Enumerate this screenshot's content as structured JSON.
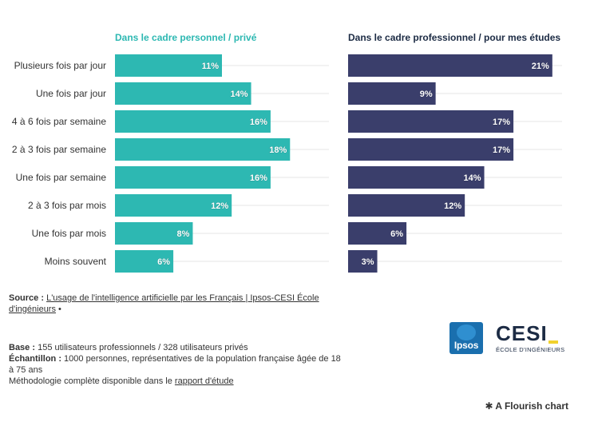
{
  "chart_data": [
    {
      "type": "bar",
      "orientation": "horizontal",
      "title": "Dans le cadre personnel / privé",
      "color": "#2db8b2",
      "categories": [
        "Plusieurs fois par jour",
        "Une fois par jour",
        "4 à 6 fois par semaine",
        "2 à 3 fois par semaine",
        "Une fois par semaine",
        "2 à 3 fois par mois",
        "Une fois par mois",
        "Moins souvent"
      ],
      "values": [
        11,
        14,
        16,
        18,
        16,
        12,
        8,
        6
      ],
      "labels": [
        "11%",
        "14%",
        "16%",
        "18%",
        "16%",
        "12%",
        "8%",
        "6%"
      ],
      "xlim": [
        0,
        22
      ]
    },
    {
      "type": "bar",
      "orientation": "horizontal",
      "title": "Dans le cadre professionnel / pour mes études",
      "color": "#3a3e6b",
      "categories": [
        "Plusieurs fois par jour",
        "Une fois par jour",
        "4 à 6 fois par semaine",
        "2 à 3 fois par semaine",
        "Une fois par semaine",
        "2 à 3 fois par mois",
        "Une fois par mois",
        "Moins souvent"
      ],
      "values": [
        21,
        9,
        17,
        17,
        14,
        12,
        6,
        3
      ],
      "labels": [
        "21%",
        "9%",
        "17%",
        "17%",
        "14%",
        "12%",
        "6%",
        "3%"
      ],
      "xlim": [
        0,
        22
      ]
    }
  ],
  "footer": {
    "source_label": "Source :",
    "source_link": "L'usage de l'intelligence artificielle par les Français | Ipsos-CESI École d'ingénieurs",
    "source_suffix": " •",
    "base_label": "Base :",
    "base_text": " 155 utilisateurs professionnels / 328 utilisateurs privés",
    "sample_label": "Échantillon :",
    "sample_text": " 1000 personnes, représentatives de la population française âgée de 18 à 75 ans",
    "method_text": "Méthodologie complète disponible dans le ",
    "method_link": "rapport d'étude"
  },
  "logos": {
    "ipsos": "Ipsos",
    "cesi": "CESI",
    "cesi_sub": "ÉCOLE D'INGÉNIEURS"
  },
  "credit": "A Flourish chart"
}
